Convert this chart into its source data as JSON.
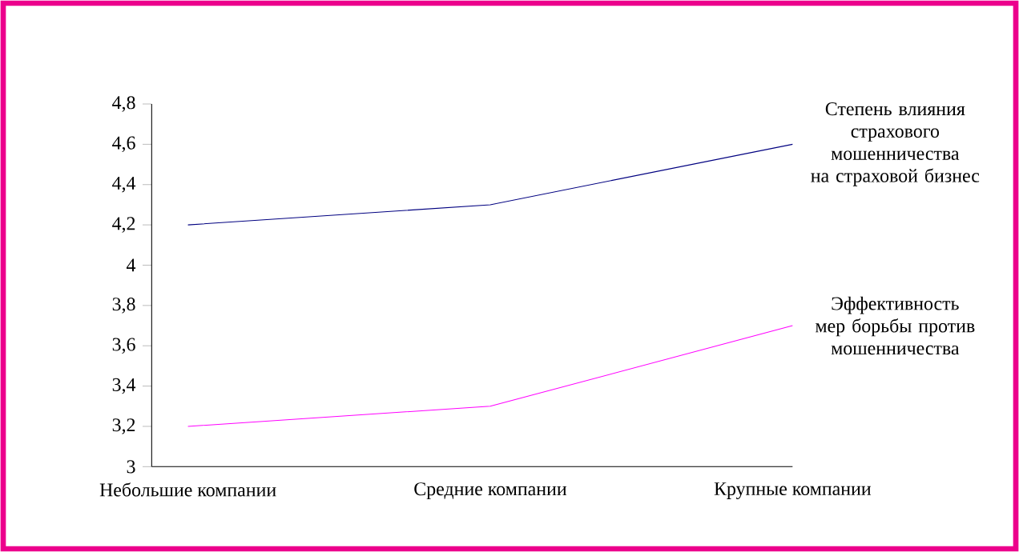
{
  "chart_data": {
    "type": "line",
    "categories": [
      "Небольшие компании",
      "Средние компании",
      "Крупные компании"
    ],
    "series": [
      {
        "name": "Степень влияния страхового мошенничества на страховой бизнес",
        "color": "#000080",
        "values": [
          4.2,
          4.3,
          4.6
        ]
      },
      {
        "name": "Эффективность мер борьбы против мошенничества",
        "color": "#ff00ff",
        "values": [
          3.2,
          3.3,
          3.7
        ]
      }
    ],
    "ylim": [
      3,
      4.8
    ],
    "yticks": [
      3,
      {
        "value": 3.2,
        "label": "3,2"
      },
      {
        "value": 3.4,
        "label": "3,4"
      },
      {
        "value": 3.6,
        "label": "3,6"
      },
      {
        "value": 3.8,
        "label": "3,8"
      },
      4,
      {
        "value": 4.2,
        "label": "4,2"
      },
      {
        "value": 4.4,
        "label": "4,4"
      },
      {
        "value": 4.6,
        "label": "4,6"
      },
      {
        "value": 4.8,
        "label": "4,8"
      }
    ],
    "grid": false,
    "marker": "none",
    "line_style": "solid"
  }
}
